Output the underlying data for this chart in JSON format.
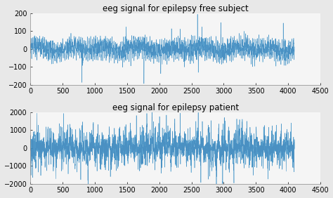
{
  "title1": "eeg signal for epilepsy free subject",
  "title2": "eeg signal for epilepsy patient",
  "n_samples": 4097,
  "xlim": [
    0,
    4500
  ],
  "xticks": [
    0,
    500,
    1000,
    1500,
    2000,
    2500,
    3000,
    3500,
    4000,
    4500
  ],
  "ylim1": [
    -200,
    200
  ],
  "yticks1": [
    -200,
    -100,
    0,
    100,
    200
  ],
  "ylim2": [
    -2000,
    2000
  ],
  "yticks2": [
    -2000,
    -1000,
    0,
    1000,
    2000
  ],
  "line_color1": "#4DA6D6",
  "line_color2": "#2060A0",
  "bg_color": "#E8E8E8",
  "axes_bg": "#F5F5F5",
  "title_fontsize": 8.5,
  "tick_fontsize": 7,
  "linewidth": 0.4,
  "seed1": 10,
  "seed2": 20
}
